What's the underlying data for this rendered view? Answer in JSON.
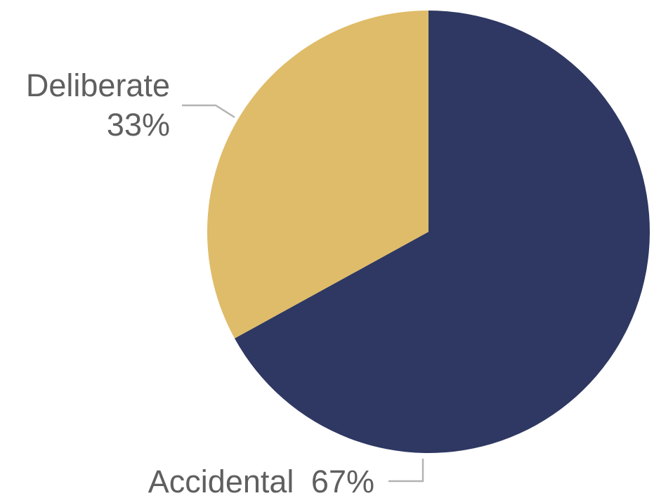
{
  "chart_data": {
    "type": "pie",
    "title": "",
    "slices": [
      {
        "label": "Accidental",
        "value": 67,
        "value_text": "67%",
        "color": "#2e3862"
      },
      {
        "label": "Deliberate",
        "value": 33,
        "value_text": "33%",
        "color": "#dfbc69"
      }
    ],
    "start": "12 o'clock",
    "direction": "clockwise",
    "legend": "none",
    "labels": "outside with leader lines"
  }
}
